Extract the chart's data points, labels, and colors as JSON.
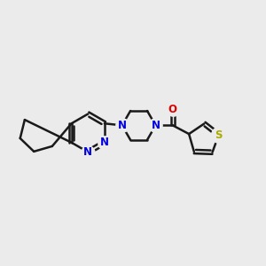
{
  "bg": "#ebebeb",
  "bc": "#1a1a1a",
  "nc": "#0000dd",
  "oc": "#dd0000",
  "sc": "#aaaa00",
  "lw": 1.8,
  "fs": 8.5,
  "figsize": [
    3.0,
    3.0
  ],
  "dpi": 100,
  "xlim": [
    -0.5,
    9.5
  ],
  "ylim": [
    -0.5,
    9.5
  ],
  "bl": 0.72,
  "ring_r": 0.72
}
